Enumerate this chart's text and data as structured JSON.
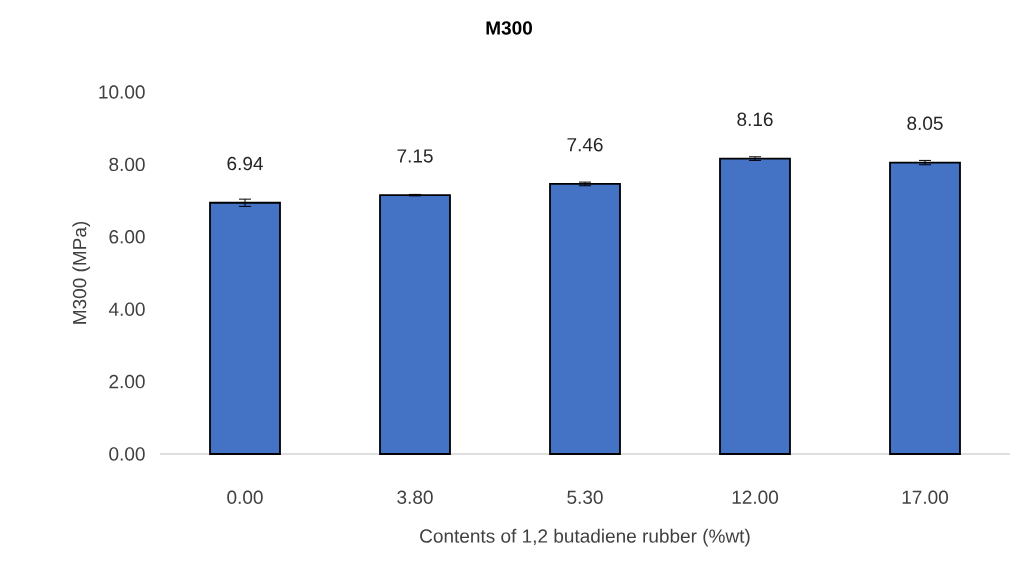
{
  "chart_data": {
    "type": "bar",
    "title": "M300",
    "xlabel": "Contents of 1,2 butadiene rubber (%wt)",
    "ylabel": "M300 (MPa)",
    "categories": [
      "0.00",
      "3.80",
      "5.30",
      "12.00",
      "17.00"
    ],
    "values": [
      6.94,
      7.15,
      7.46,
      8.16,
      8.05
    ],
    "errors": [
      0.1,
      0.02,
      0.05,
      0.05,
      0.06
    ],
    "color": "#4472c4",
    "data_labels": true,
    "ylim": [
      0,
      10
    ],
    "yticks": [
      {
        "value": 0,
        "label": "0.00"
      },
      {
        "value": 2,
        "label": "2.00"
      },
      {
        "value": 4,
        "label": "4.00"
      },
      {
        "value": 6,
        "label": "6.00"
      },
      {
        "value": 8,
        "label": "8.00"
      },
      {
        "value": 10,
        "label": "10.00"
      }
    ]
  }
}
